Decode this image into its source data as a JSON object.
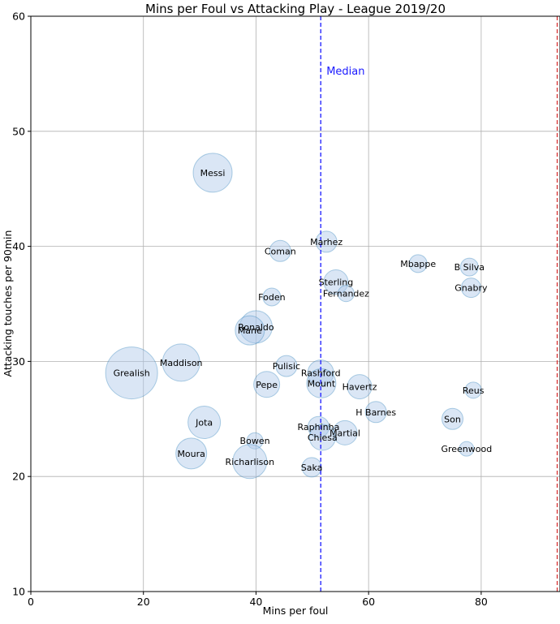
{
  "chart_data": {
    "type": "scatter",
    "title": "Mins per Foul vs Attacking Play - League 2019/20",
    "xlabel": "Mins per foul",
    "ylabel": "Attacking touches per 90min",
    "xlim": [
      0,
      94
    ],
    "ylim": [
      10,
      60
    ],
    "xticks": [
      0,
      20,
      40,
      60,
      80
    ],
    "yticks": [
      10,
      20,
      30,
      40,
      50,
      60
    ],
    "grid": true,
    "bubble_color": "#aec7e8",
    "median": {
      "label": "Median",
      "x": 51.5,
      "color": "#1a1aff"
    },
    "ref_line": {
      "x": 93.5,
      "color": "#d62728"
    },
    "points": [
      {
        "name": "Messi",
        "x": 32.3,
        "y": 46.4,
        "size": 24
      },
      {
        "name": "Marhez",
        "x": 52.5,
        "y": 40.4,
        "size": 13
      },
      {
        "name": "Coman",
        "x": 44.3,
        "y": 39.6,
        "size": 13
      },
      {
        "name": "Mbappe",
        "x": 68.8,
        "y": 38.5,
        "size": 11
      },
      {
        "name": "B Silva",
        "x": 77.9,
        "y": 38.2,
        "size": 11
      },
      {
        "name": "Sterling",
        "x": 54.2,
        "y": 36.9,
        "size": 15
      },
      {
        "name": "Gnabry",
        "x": 78.2,
        "y": 36.4,
        "size": 12
      },
      {
        "name": "Fernandez",
        "x": 56.0,
        "y": 35.9,
        "size": 10
      },
      {
        "name": "Foden",
        "x": 42.8,
        "y": 35.6,
        "size": 11
      },
      {
        "name": "Ronaldo",
        "x": 40.0,
        "y": 33.0,
        "size": 20
      },
      {
        "name": "Mane",
        "x": 38.9,
        "y": 32.7,
        "size": 18
      },
      {
        "name": "Maddison",
        "x": 26.7,
        "y": 29.9,
        "size": 23
      },
      {
        "name": "Pulisic",
        "x": 45.4,
        "y": 29.6,
        "size": 13
      },
      {
        "name": "Grealish",
        "x": 17.9,
        "y": 29.0,
        "size": 32
      },
      {
        "name": "Rashford",
        "x": 51.5,
        "y": 29.0,
        "size": 16
      },
      {
        "name": "Mount",
        "x": 51.6,
        "y": 28.1,
        "size": 18
      },
      {
        "name": "Pepe",
        "x": 41.9,
        "y": 28.0,
        "size": 16
      },
      {
        "name": "Havertz",
        "x": 58.4,
        "y": 27.8,
        "size": 15
      },
      {
        "name": "Reus",
        "x": 78.6,
        "y": 27.5,
        "size": 10
      },
      {
        "name": "H Barnes",
        "x": 61.3,
        "y": 25.6,
        "size": 13
      },
      {
        "name": "Son",
        "x": 74.9,
        "y": 25.0,
        "size": 13
      },
      {
        "name": "Jota",
        "x": 30.8,
        "y": 24.7,
        "size": 20
      },
      {
        "name": "Raphinha",
        "x": 51.1,
        "y": 24.3,
        "size": 13
      },
      {
        "name": "Martial",
        "x": 55.8,
        "y": 23.8,
        "size": 15
      },
      {
        "name": "Chiesa",
        "x": 51.8,
        "y": 23.4,
        "size": 16
      },
      {
        "name": "Bowen",
        "x": 39.8,
        "y": 23.1,
        "size": 10
      },
      {
        "name": "Greenwood",
        "x": 77.4,
        "y": 22.4,
        "size": 9
      },
      {
        "name": "Moura",
        "x": 28.5,
        "y": 22.0,
        "size": 19
      },
      {
        "name": "Richarlison",
        "x": 38.9,
        "y": 21.3,
        "size": 21
      },
      {
        "name": "Saka",
        "x": 49.9,
        "y": 20.8,
        "size": 12
      }
    ]
  }
}
